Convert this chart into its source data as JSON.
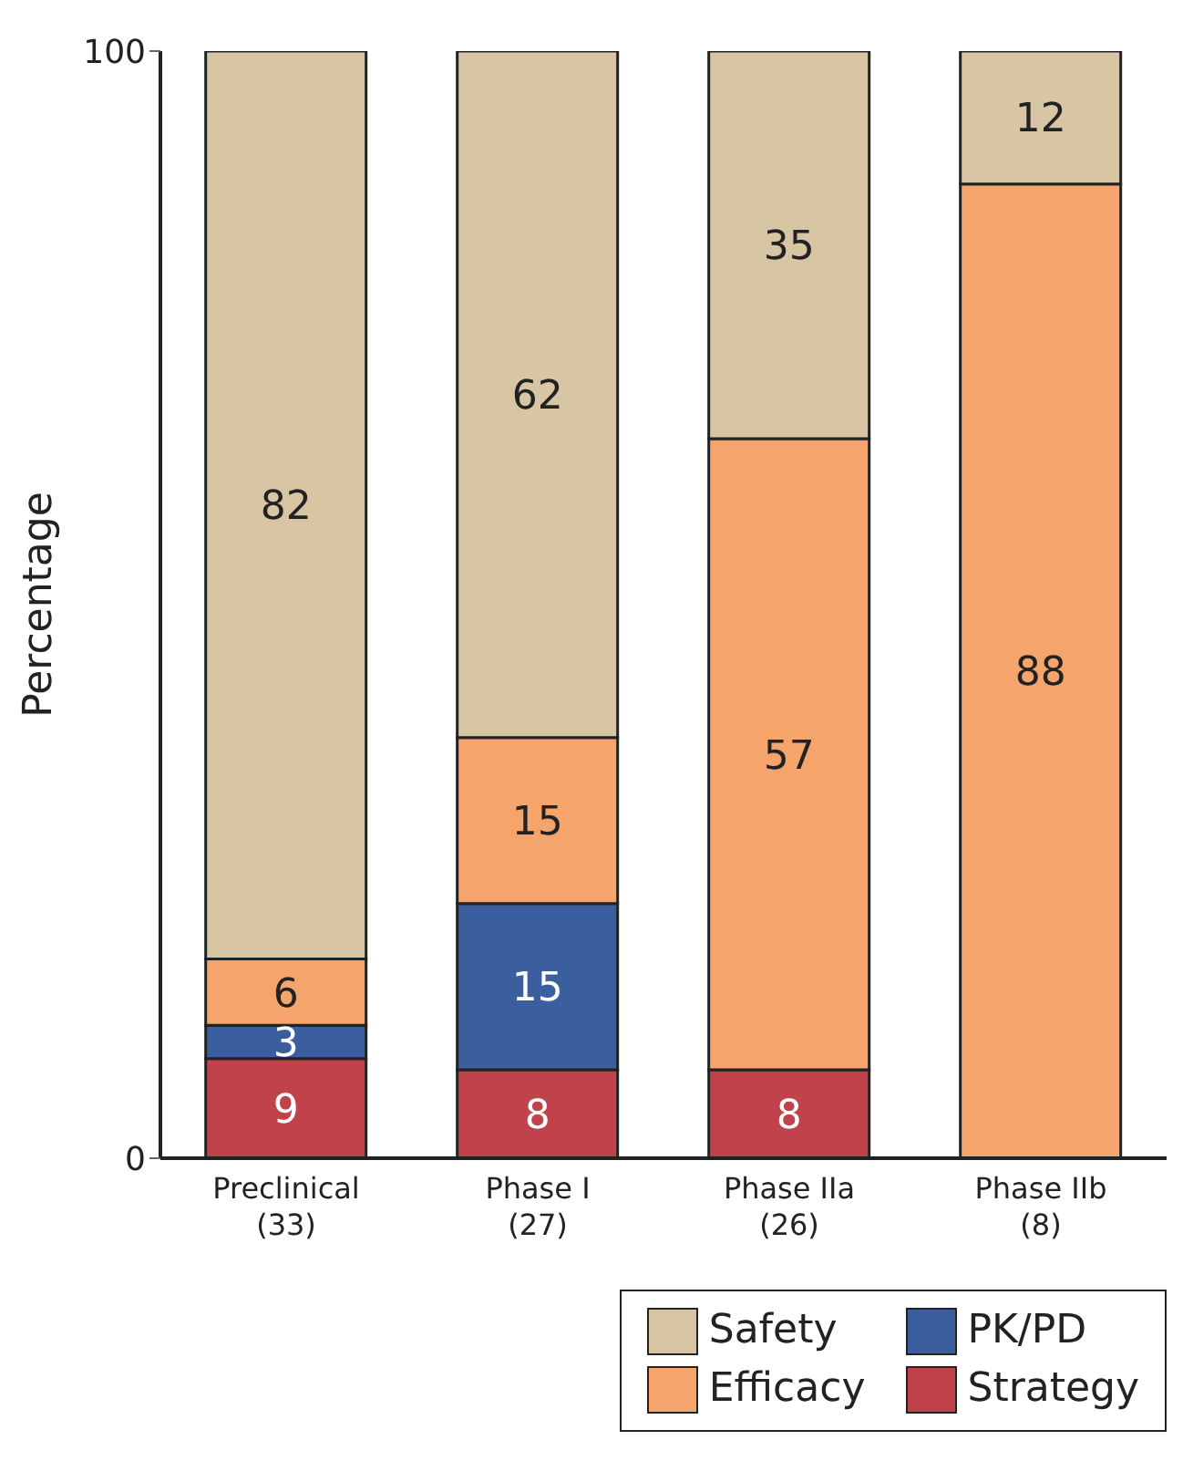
{
  "chart_data": {
    "type": "bar",
    "stacked": true,
    "ylabel": "Percentage",
    "categories": [
      "Preclinical\n(33)",
      "Phase I\n(27)",
      "Phase IIa\n(26)",
      "Phase IIb\n(8)"
    ],
    "series": [
      {
        "name": "Strategy",
        "color": "#c0434b",
        "values": [
          9,
          8,
          8,
          null
        ]
      },
      {
        "name": "PK/PD",
        "color": "#3a5e9e",
        "values": [
          3,
          15,
          null,
          null
        ]
      },
      {
        "name": "Efficacy",
        "color": "#f5a56c",
        "values": [
          6,
          15,
          57,
          88
        ]
      },
      {
        "name": "Safety",
        "color": "#d8c5a3",
        "values": [
          82,
          62,
          35,
          12
        ]
      }
    ],
    "ylim": [
      0,
      100
    ],
    "yticks": [
      0,
      100
    ],
    "data_labels": true,
    "legend": "bottom right",
    "grid": false
  }
}
